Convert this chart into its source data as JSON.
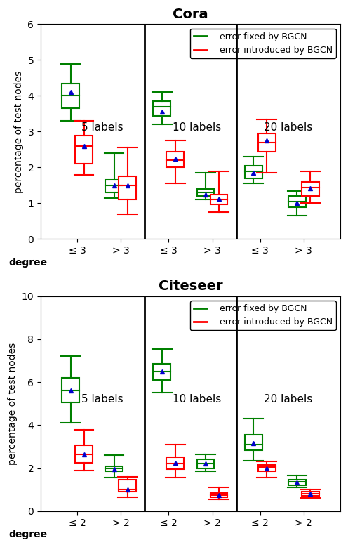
{
  "panels": [
    {
      "title": "Cora",
      "ylim": [
        0,
        6
      ],
      "yticks": [
        0,
        1,
        2,
        3,
        4,
        5,
        6
      ],
      "ylabel": "percentage of test nodes",
      "degree_thresh": "3",
      "section_labels": [
        "5 labels",
        "10 labels",
        "20 labels"
      ],
      "green_boxes": [
        {
          "whislo": 3.3,
          "q1": 3.65,
          "med": 4.0,
          "q3": 4.35,
          "whishi": 4.9,
          "mean": 4.1
        },
        {
          "whislo": 1.15,
          "q1": 1.3,
          "med": 1.5,
          "q3": 1.65,
          "whishi": 2.4,
          "mean": 1.5
        },
        {
          "whislo": 3.2,
          "q1": 3.45,
          "med": 3.7,
          "q3": 3.85,
          "whishi": 4.1,
          "mean": 3.55
        },
        {
          "whislo": 1.1,
          "q1": 1.2,
          "med": 1.3,
          "q3": 1.4,
          "whishi": 1.85,
          "mean": 1.25
        },
        {
          "whislo": 1.55,
          "q1": 1.7,
          "med": 1.9,
          "q3": 2.05,
          "whishi": 2.3,
          "mean": 1.85
        },
        {
          "whislo": 0.65,
          "q1": 0.9,
          "med": 1.05,
          "q3": 1.2,
          "whishi": 1.35,
          "mean": 1.0
        }
      ],
      "red_boxes": [
        {
          "whislo": 1.8,
          "q1": 2.1,
          "med": 2.6,
          "q3": 2.9,
          "whishi": 3.3,
          "mean": 2.6
        },
        {
          "whislo": 0.7,
          "q1": 1.1,
          "med": 1.5,
          "q3": 1.75,
          "whishi": 2.55,
          "mean": 1.5
        },
        {
          "whislo": 1.55,
          "q1": 2.0,
          "med": 2.2,
          "q3": 2.45,
          "whishi": 2.75,
          "mean": 2.25
        },
        {
          "whislo": 0.75,
          "q1": 0.98,
          "med": 1.1,
          "q3": 1.25,
          "whishi": 1.9,
          "mean": 1.12
        },
        {
          "whislo": 1.85,
          "q1": 2.45,
          "med": 2.7,
          "q3": 2.95,
          "whishi": 3.35,
          "mean": 2.75
        },
        {
          "whislo": 1.0,
          "q1": 1.2,
          "med": 1.45,
          "q3": 1.6,
          "whishi": 1.9,
          "mean": 1.42
        }
      ]
    },
    {
      "title": "Citeseer",
      "ylim": [
        0,
        10
      ],
      "yticks": [
        0,
        2,
        4,
        6,
        8,
        10
      ],
      "ylabel": "percentage of test nodes",
      "degree_thresh": "2",
      "section_labels": [
        "5 labels",
        "10 labels",
        "20 labels"
      ],
      "green_boxes": [
        {
          "whislo": 4.1,
          "q1": 5.05,
          "med": 5.6,
          "q3": 6.2,
          "whishi": 7.2,
          "mean": 5.6
        },
        {
          "whislo": 1.55,
          "q1": 1.85,
          "med": 2.0,
          "q3": 2.1,
          "whishi": 2.6,
          "mean": 1.95
        },
        {
          "whislo": 5.5,
          "q1": 6.1,
          "med": 6.5,
          "q3": 6.85,
          "whishi": 7.55,
          "mean": 6.5
        },
        {
          "whislo": 1.85,
          "q1": 2.0,
          "med": 2.2,
          "q3": 2.4,
          "whishi": 2.65,
          "mean": 2.2
        },
        {
          "whislo": 2.35,
          "q1": 2.85,
          "med": 3.1,
          "q3": 3.55,
          "whishi": 4.3,
          "mean": 3.15
        },
        {
          "whislo": 1.1,
          "q1": 1.2,
          "med": 1.35,
          "q3": 1.45,
          "whishi": 1.65,
          "mean": 1.33
        }
      ],
      "red_boxes": [
        {
          "whislo": 1.9,
          "q1": 2.25,
          "med": 2.65,
          "q3": 3.05,
          "whishi": 3.8,
          "mean": 2.65
        },
        {
          "whislo": 0.65,
          "q1": 0.9,
          "med": 1.0,
          "q3": 1.45,
          "whishi": 1.6,
          "mean": 1.0
        },
        {
          "whislo": 1.55,
          "q1": 1.95,
          "med": 2.2,
          "q3": 2.5,
          "whishi": 3.1,
          "mean": 2.25
        },
        {
          "whislo": 0.55,
          "q1": 0.65,
          "med": 0.75,
          "q3": 0.85,
          "whishi": 1.1,
          "mean": 0.75
        },
        {
          "whislo": 1.55,
          "q1": 1.85,
          "med": 2.05,
          "q3": 2.15,
          "whishi": 2.3,
          "mean": 2.0
        },
        {
          "whislo": 0.6,
          "q1": 0.7,
          "med": 0.8,
          "q3": 0.9,
          "whishi": 1.0,
          "mean": 0.8
        }
      ]
    }
  ],
  "green_color": "#008000",
  "red_color": "#ff0000",
  "blue_color": "#0000cd",
  "box_width": 0.42,
  "cap_ratio": 0.55
}
